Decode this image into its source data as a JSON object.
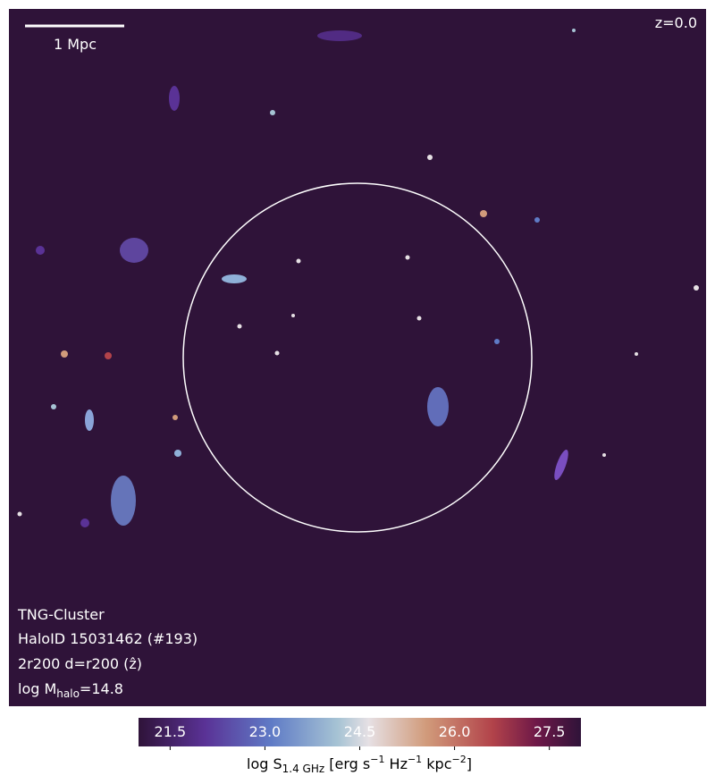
{
  "image": {
    "redshift": "z=0.0",
    "scale_bar": "1 Mpc",
    "info": [
      "TNG-Cluster",
      "HaloID 15031462 (#193)",
      "2r200 d=r200 (ẑ)"
    ],
    "mass": [
      "log M",
      "halo",
      "=14.8"
    ]
  },
  "colorbar": {
    "lim": [
      21,
      28
    ],
    "ticks": [
      21.5,
      {
        "value": 23,
        "label": "23.0"
      },
      24.5,
      {
        "value": 26,
        "label": "26.0"
      },
      27.5
    ],
    "label": [
      "log S",
      "1.4 GHz",
      " [erg s",
      "−1",
      " Hz",
      "−1",
      " kpc",
      "−2",
      "]"
    ]
  }
}
